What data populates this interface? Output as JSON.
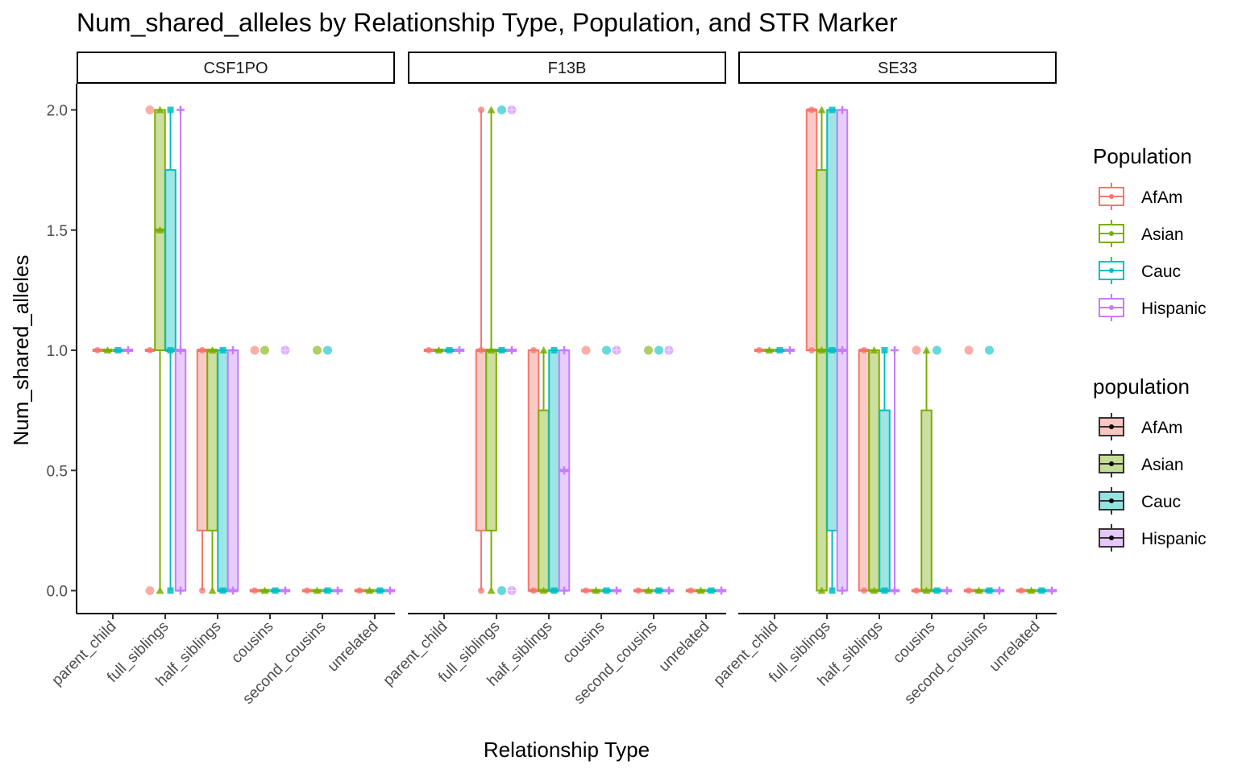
{
  "chart_data": {
    "type": "boxplot",
    "title": "Num_shared_alleles by Relationship Type, Population, and STR Marker",
    "xlabel": "Relationship Type",
    "ylabel": "Num_shared_alleles",
    "ylim": [
      -0.1,
      2.1
    ],
    "yticks": [
      "0.0",
      "0.5",
      "1.0",
      "1.5",
      "2.0"
    ],
    "ytick_values": [
      0,
      0.5,
      1.0,
      1.5,
      2.0
    ],
    "categories": [
      "parent_child",
      "full_siblings",
      "half_siblings",
      "cousins",
      "second_cousins",
      "unrelated"
    ],
    "legend": [
      {
        "title": "Population",
        "items": [
          "AfAm",
          "Asian",
          "Cauc",
          "Hispanic"
        ]
      },
      {
        "title": "population",
        "items": [
          "AfAm",
          "Asian",
          "Cauc",
          "Hispanic"
        ]
      }
    ],
    "series_colors": {
      "AfAm": "#F8766D",
      "Asian": "#7CAE00",
      "Cauc": "#00BFC4",
      "Hispanic": "#C77CFF"
    },
    "series_fills": {
      "AfAm": "#F8C5C0",
      "Asian": "#C5DC96",
      "Cauc": "#96E2E2",
      "Hispanic": "#E5C8FB"
    },
    "populations": [
      "AfAm",
      "Asian",
      "Cauc",
      "Hispanic"
    ],
    "panels": [
      {
        "marker": "CSF1PO",
        "boxes": [
          [
            [
              1,
              1,
              1,
              1,
              1
            ],
            [
              1,
              1,
              1,
              1,
              1
            ],
            [
              1,
              1,
              1,
              1,
              1
            ],
            [
              1,
              1,
              1,
              1,
              1
            ]
          ],
          [
            [
              1,
              1,
              1,
              1,
              1
            ],
            [
              0,
              1,
              1.5,
              2,
              2
            ],
            [
              0,
              1,
              1,
              1.75,
              2
            ],
            [
              0,
              0,
              1,
              1,
              2
            ]
          ],
          [
            [
              0,
              0.25,
              1,
              1,
              1
            ],
            [
              0,
              0.25,
              1,
              1,
              1
            ],
            [
              0,
              0,
              0,
              1,
              1
            ],
            [
              0,
              0,
              0,
              1,
              1
            ]
          ],
          [
            [
              0,
              0,
              0,
              0,
              0
            ],
            [
              0,
              0,
              0,
              0,
              0
            ],
            [
              0,
              0,
              0,
              0,
              0
            ],
            [
              0,
              0,
              0,
              0,
              0
            ]
          ],
          [
            [
              0,
              0,
              0,
              0,
              0
            ],
            [
              0,
              0,
              0,
              0,
              0
            ],
            [
              0,
              0,
              0,
              0,
              0
            ],
            [
              0,
              0,
              0,
              0,
              0
            ]
          ],
          [
            [
              0,
              0,
              0,
              0,
              0
            ],
            [
              0,
              0,
              0,
              0,
              0
            ],
            [
              0,
              0,
              0,
              0,
              0
            ],
            [
              0,
              0,
              0,
              0,
              0
            ]
          ]
        ],
        "outliers": [
          [
            1,
            0,
            2
          ],
          [
            1,
            0,
            0
          ],
          [
            3,
            0,
            1
          ],
          [
            3,
            1,
            1
          ],
          [
            3,
            3,
            1
          ],
          [
            4,
            1,
            1
          ],
          [
            4,
            2,
            1
          ]
        ]
      },
      {
        "marker": "F13B",
        "boxes": [
          [
            [
              1,
              1,
              1,
              1,
              1
            ],
            [
              1,
              1,
              1,
              1,
              1
            ],
            [
              1,
              1,
              1,
              1,
              1
            ],
            [
              1,
              1,
              1,
              1,
              1
            ]
          ],
          [
            [
              0,
              0.25,
              1,
              1,
              2
            ],
            [
              0,
              0.25,
              1,
              1,
              2
            ],
            [
              1,
              1,
              1,
              1,
              1
            ],
            [
              1,
              1,
              1,
              1,
              1
            ]
          ],
          [
            [
              0,
              0,
              0,
              1,
              1
            ],
            [
              0,
              0,
              0,
              0.75,
              1
            ],
            [
              0,
              0,
              0,
              1,
              1
            ],
            [
              0,
              0,
              0.5,
              1,
              1
            ]
          ],
          [
            [
              0,
              0,
              0,
              0,
              0
            ],
            [
              0,
              0,
              0,
              0,
              0
            ],
            [
              0,
              0,
              0,
              0,
              0
            ],
            [
              0,
              0,
              0,
              0,
              0
            ]
          ],
          [
            [
              0,
              0,
              0,
              0,
              0
            ],
            [
              0,
              0,
              0,
              0,
              0
            ],
            [
              0,
              0,
              0,
              0,
              0
            ],
            [
              0,
              0,
              0,
              0,
              0
            ]
          ],
          [
            [
              0,
              0,
              0,
              0,
              0
            ],
            [
              0,
              0,
              0,
              0,
              0
            ],
            [
              0,
              0,
              0,
              0,
              0
            ],
            [
              0,
              0,
              0,
              0,
              0
            ]
          ]
        ],
        "outliers": [
          [
            1,
            2,
            2
          ],
          [
            1,
            2,
            0
          ],
          [
            1,
            3,
            2
          ],
          [
            1,
            3,
            0
          ],
          [
            3,
            0,
            1
          ],
          [
            3,
            2,
            1
          ],
          [
            3,
            3,
            1
          ],
          [
            4,
            1,
            1
          ],
          [
            4,
            2,
            1
          ],
          [
            4,
            3,
            1
          ]
        ]
      },
      {
        "marker": "SE33",
        "boxes": [
          [
            [
              1,
              1,
              1,
              1,
              1
            ],
            [
              1,
              1,
              1,
              1,
              1
            ],
            [
              1,
              1,
              1,
              1,
              1
            ],
            [
              1,
              1,
              1,
              1,
              1
            ]
          ],
          [
            [
              1,
              1,
              2,
              2,
              2
            ],
            [
              0,
              0,
              1,
              1.75,
              2
            ],
            [
              0,
              0.25,
              1,
              2,
              2
            ],
            [
              0,
              0,
              1,
              2,
              2
            ]
          ],
          [
            [
              0,
              0,
              1,
              1,
              1
            ],
            [
              0,
              0,
              0,
              1,
              1
            ],
            [
              0,
              0,
              0,
              0.75,
              1
            ],
            [
              0,
              0,
              0,
              0,
              1
            ]
          ],
          [
            [
              0,
              0,
              0,
              0,
              0
            ],
            [
              0,
              0,
              0,
              0.75,
              1
            ],
            [
              0,
              0,
              0,
              0,
              0
            ],
            [
              0,
              0,
              0,
              0,
              0
            ]
          ],
          [
            [
              0,
              0,
              0,
              0,
              0
            ],
            [
              0,
              0,
              0,
              0,
              0
            ],
            [
              0,
              0,
              0,
              0,
              0
            ],
            [
              0,
              0,
              0,
              0,
              0
            ]
          ],
          [
            [
              0,
              0,
              0,
              0,
              0
            ],
            [
              0,
              0,
              0,
              0,
              0
            ],
            [
              0,
              0,
              0,
              0,
              0
            ],
            [
              0,
              0,
              0,
              0,
              0
            ]
          ]
        ],
        "outliers": [
          [
            3,
            0,
            1
          ],
          [
            3,
            2,
            1
          ],
          [
            4,
            0,
            1
          ],
          [
            4,
            2,
            1
          ]
        ]
      }
    ]
  }
}
